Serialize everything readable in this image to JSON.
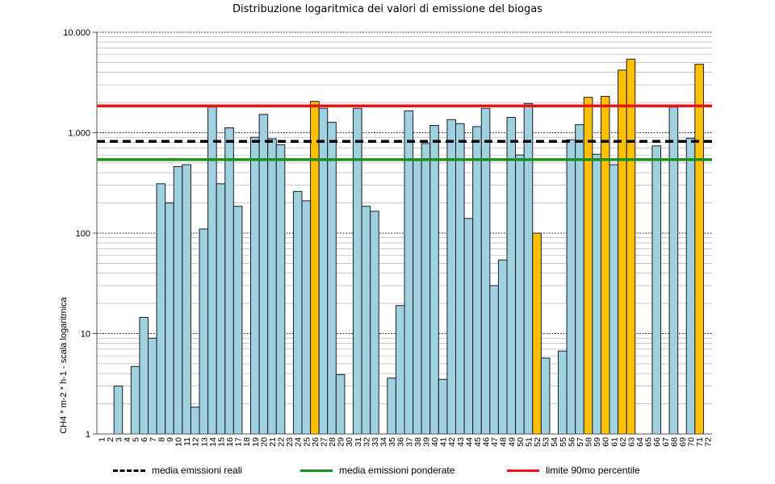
{
  "colors": {
    "bar_normal": "#9fd1de",
    "bar_high": "#ffc000",
    "bar_stroke": "#1a1a2e",
    "mean_real": "#000000",
    "mean_weighted": "#1b8f1b",
    "p90": "#ee1111",
    "grid_major": "#000000",
    "grid_minor": "#a8a8a8"
  },
  "chart_data": {
    "type": "bar",
    "title": "Distribuzione  logaritmica dei valori di emissione del biogas",
    "ylabel": "CH4 * m-2 * h-1  - scala logaritmica",
    "xlabel": "",
    "yscale": "log",
    "ylim": [
      1,
      10000
    ],
    "ytick_values": [
      1,
      10,
      100,
      1000,
      10000
    ],
    "ytick_labels": [
      "1",
      "10",
      "100",
      "1.000",
      "10.000"
    ],
    "grid": true,
    "legend_position": "bottom",
    "categories": [
      "1",
      "2",
      "3",
      "4",
      "5",
      "6",
      "7",
      "8",
      "9",
      "10",
      "11",
      "12",
      "13",
      "14",
      "15",
      "16",
      "17",
      "18",
      "19",
      "20",
      "21",
      "22",
      "23",
      "24",
      "25",
      "26",
      "27",
      "28",
      "29",
      "30",
      "31",
      "32",
      "33",
      "34",
      "35",
      "36",
      "37",
      "38",
      "39",
      "40",
      "41",
      "42",
      "43",
      "44",
      "45",
      "46",
      "47",
      "48",
      "49",
      "50",
      "51",
      "52",
      "53",
      "54",
      "55",
      "56",
      "57",
      "58",
      "59",
      "60",
      "61",
      "62",
      "63",
      "64",
      "65",
      "66",
      "67",
      "68",
      "69",
      "70",
      "71",
      "72"
    ],
    "values": [
      0,
      0,
      3,
      0,
      4.7,
      14.5,
      9,
      310,
      200,
      460,
      480,
      1.85,
      110,
      1800,
      310,
      1120,
      185,
      0,
      900,
      1520,
      870,
      760,
      0,
      260,
      210,
      2050,
      1750,
      1270,
      3.9,
      0,
      1750,
      185,
      165,
      0,
      3.6,
      19,
      1650,
      540,
      780,
      1180,
      3.5,
      1350,
      1230,
      140,
      1150,
      1750,
      30,
      54,
      1420,
      600,
      1950,
      100,
      5.7,
      0,
      6.7,
      850,
      1200,
      2250,
      610,
      2300,
      480,
      4200,
      5400,
      0,
      0,
      740,
      0,
      1800,
      0,
      880,
      4800,
      0
    ],
    "highlight": [
      false,
      false,
      false,
      false,
      false,
      false,
      false,
      false,
      false,
      false,
      false,
      false,
      false,
      false,
      false,
      false,
      false,
      false,
      false,
      false,
      false,
      false,
      false,
      false,
      false,
      true,
      false,
      false,
      false,
      false,
      false,
      false,
      false,
      false,
      false,
      false,
      false,
      false,
      false,
      false,
      false,
      false,
      false,
      false,
      false,
      false,
      false,
      false,
      false,
      false,
      false,
      true,
      false,
      false,
      false,
      false,
      false,
      true,
      false,
      true,
      false,
      true,
      true,
      false,
      false,
      false,
      false,
      false,
      false,
      false,
      true,
      false
    ],
    "reference_lines": [
      {
        "name": "media emissioni reali",
        "value": 820,
        "style": "dashed",
        "color": "#000000"
      },
      {
        "name": "media emissioni ponderate",
        "value": 540,
        "style": "solid",
        "color": "#1b8f1b"
      },
      {
        "name": "limite 90mo percentile",
        "value": 1850,
        "style": "solid",
        "color": "#ee1111"
      }
    ]
  }
}
